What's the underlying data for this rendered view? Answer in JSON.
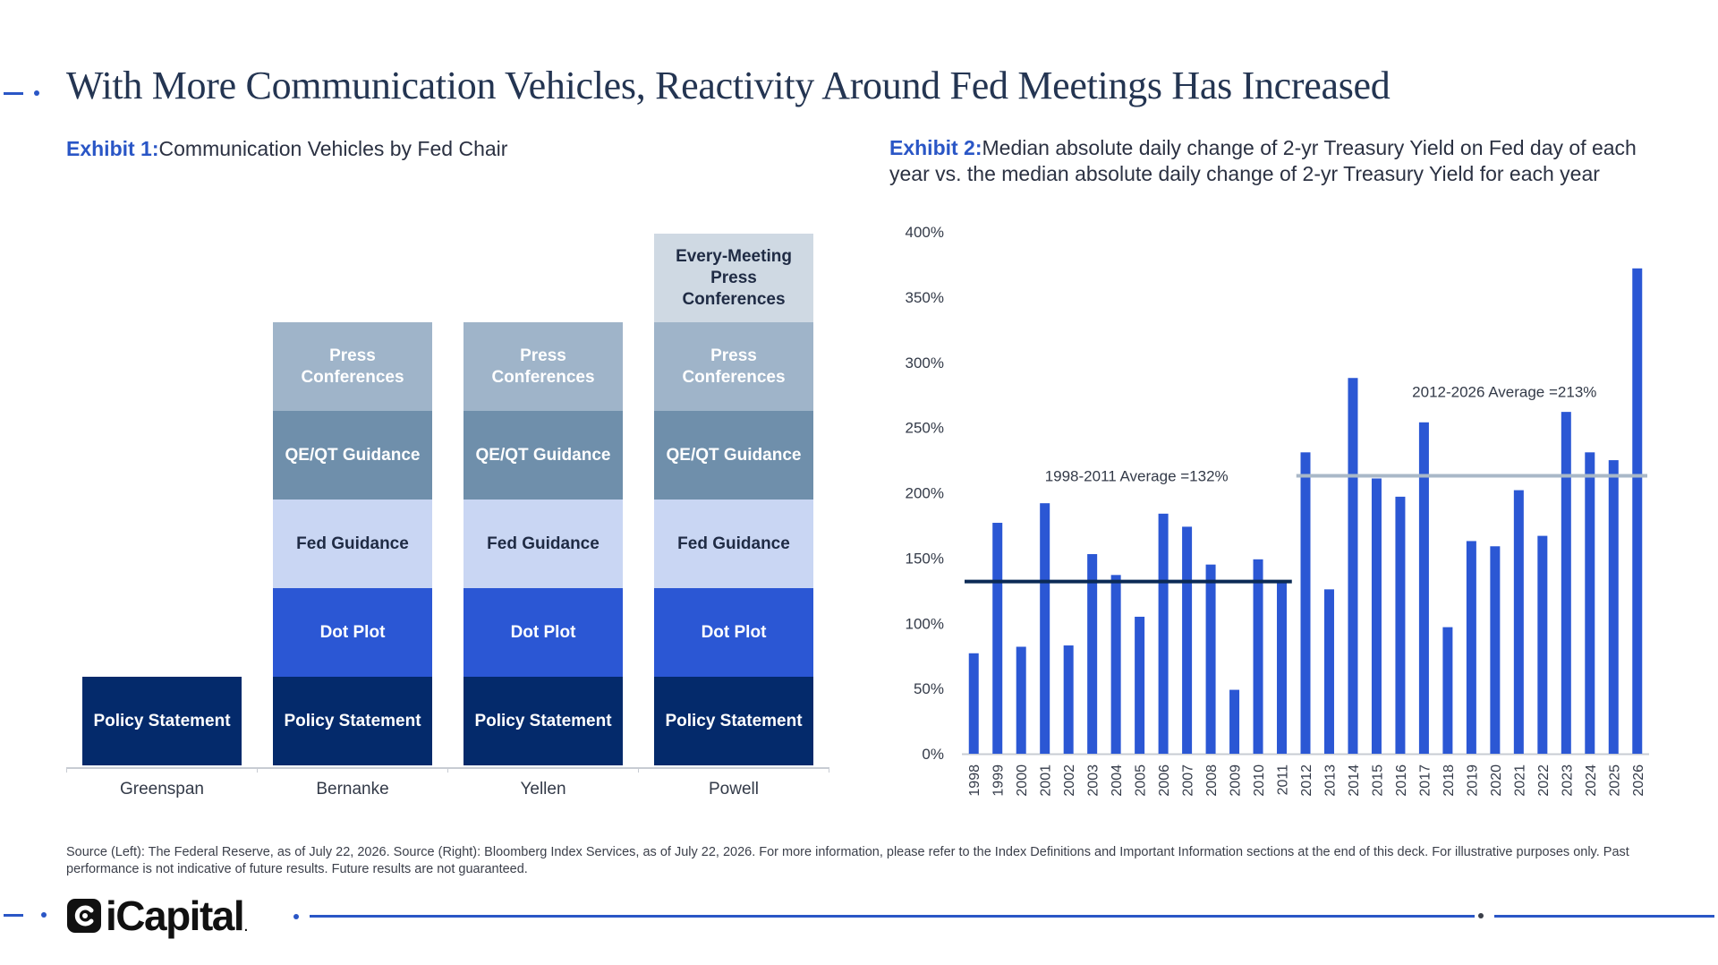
{
  "header": {
    "title": "With More Communication Vehicles, Reactivity Around Fed Meetings Has Increased"
  },
  "exhibit1": {
    "label": "Exhibit 1:",
    "title": "Communication Vehicles by Fed Chair"
  },
  "exhibit2": {
    "label": "Exhibit 2:",
    "title_line1": "Median absolute daily change of 2-yr Treasury Yield on Fed day of each",
    "title_line2": "year vs. the median absolute daily change of 2-yr Treasury Yield for each year"
  },
  "colors": {
    "accent": "#2a56c6",
    "navy": "#042a6b",
    "bar": "#2b57d4",
    "avg1": "#0b2a55",
    "avg2": "#a9b8c8"
  },
  "chart_data": [
    {
      "type": "bar",
      "subtype": "stacked-blocks",
      "categories": [
        "Greenspan",
        "Bernanke",
        "Yellen",
        "Powell"
      ],
      "layers": [
        {
          "name": "Policy Statement",
          "label": "Policy Statement",
          "color": "#042a6b",
          "text_color": "#ffffff",
          "present": [
            true,
            true,
            true,
            true
          ]
        },
        {
          "name": "Dot Plot",
          "label": "Dot Plot",
          "color": "#2b57d4",
          "text_color": "#ffffff",
          "present": [
            false,
            true,
            true,
            true
          ]
        },
        {
          "name": "Fed Guidance",
          "label": "Fed Guidance",
          "color": "#c9d6f3",
          "text_color": "#1f2b44",
          "present": [
            false,
            true,
            true,
            true
          ]
        },
        {
          "name": "QE/QT Guidance",
          "label": "QE/QT Guidance",
          "color": "#6f8fab",
          "text_color": "#ffffff",
          "present": [
            false,
            true,
            true,
            true
          ]
        },
        {
          "name": "Press Conferences",
          "label": "Press Conferences",
          "color": "#9fb4c9",
          "text_color": "#ffffff",
          "present": [
            false,
            true,
            true,
            true
          ]
        },
        {
          "name": "Every-Meeting Press Conferences",
          "label": "Every-Meeting Press Conferences",
          "color": "#cfd9e3",
          "text_color": "#1f2b44",
          "present": [
            false,
            false,
            false,
            true
          ]
        }
      ]
    },
    {
      "type": "bar",
      "categories": [
        "1998",
        "1999",
        "2000",
        "2001",
        "2002",
        "2003",
        "2004",
        "2005",
        "2006",
        "2007",
        "2008",
        "2009",
        "2010",
        "2011",
        "2012",
        "2013",
        "2014",
        "2015",
        "2016",
        "2017",
        "2018",
        "2019",
        "2020",
        "2021",
        "2022",
        "2023",
        "2024",
        "2025",
        "2026"
      ],
      "values": [
        77,
        177,
        82,
        192,
        83,
        153,
        137,
        105,
        184,
        174,
        145,
        49,
        149,
        132,
        231,
        126,
        288,
        211,
        197,
        254,
        97,
        163,
        159,
        202,
        167,
        262,
        231,
        225,
        372
      ],
      "ylim": [
        0,
        400
      ],
      "yticks": [
        "0%",
        "50%",
        "100%",
        "150%",
        "200%",
        "250%",
        "300%",
        "350%",
        "400%"
      ],
      "ytick_values": [
        0,
        50,
        100,
        150,
        200,
        250,
        300,
        350,
        400
      ],
      "grid": false,
      "averages": [
        {
          "label": "1998-2011 Average =132%",
          "value": 132,
          "from": "1998",
          "to": "2011",
          "color": "#0b2a55"
        },
        {
          "label": "2012-2026 Average =213%",
          "value": 213,
          "from": "2012",
          "to": "2026",
          "color": "#a9b8c8"
        }
      ]
    }
  ],
  "footer": {
    "source": "Source (Left): The Federal Reserve, as of July 22, 2026. Source (Right):  Bloomberg Index Services, as of July 22, 2026. For more information, please refer to the Index Definitions and Important Information sections at the end of this deck. For illustrative purposes only. Past performance is not indicative of future results. Future results are not guaranteed.",
    "logo_text": "iCapital",
    "logo_trademark": "."
  }
}
